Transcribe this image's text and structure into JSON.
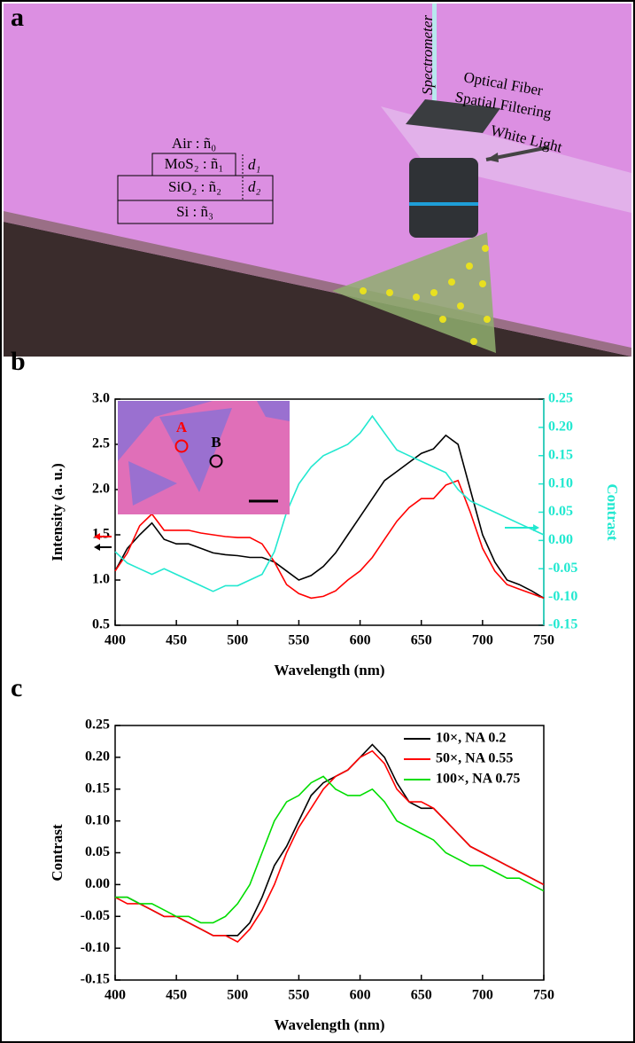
{
  "illustration": {
    "panel": "a",
    "air": "Air : ñ₀",
    "mos2": "MoS₂ : ñ₁",
    "d1": "d₁",
    "sio2": "SiO₂ : ñ₂",
    "d2": "d₂",
    "si": "Si : ñ₃",
    "spectrometer": "Spectrometer",
    "fiber": "Optical Fiber",
    "filtering": "Spatial Filtering",
    "white_light": "White Light"
  },
  "chart_data": [
    {
      "type": "line",
      "panel": "b",
      "xlabel": "Wavelength (nm)",
      "ylabel": "Intensity (a. u.)",
      "y2label": "Contrast",
      "x": [
        400,
        410,
        420,
        430,
        440,
        450,
        460,
        470,
        480,
        490,
        500,
        510,
        520,
        530,
        540,
        550,
        560,
        570,
        580,
        590,
        600,
        610,
        620,
        630,
        640,
        650,
        660,
        670,
        680,
        690,
        700,
        710,
        720,
        730,
        740,
        750
      ],
      "xlim": [
        400,
        750
      ],
      "xticks": [
        400,
        450,
        500,
        550,
        600,
        650,
        700,
        750
      ],
      "ylim": [
        0.5,
        3.0
      ],
      "yticks": [
        {
          "value": 0.5,
          "label": "0.5"
        },
        {
          "value": 1,
          "label": "1.0"
        },
        {
          "value": 1.5,
          "label": "1.5"
        },
        {
          "value": 2,
          "label": "2.0"
        },
        {
          "value": 2.5,
          "label": "2.5"
        },
        {
          "value": 3,
          "label": "3.0"
        }
      ],
      "y2lim": [
        -0.15,
        0.25
      ],
      "y2ticks": [
        -0.15,
        {
          "value": -0.1,
          "label": "-0.10"
        },
        -0.05,
        {
          "value": 0,
          "label": "0.00"
        },
        0.05,
        {
          "value": 0.1,
          "label": "0.10"
        },
        0.15,
        {
          "value": 0.2,
          "label": "0.20"
        },
        0.25
      ],
      "annotations": [
        "A",
        "B"
      ],
      "series": [
        {
          "color": "#000000",
          "values": [
            1.1,
            1.35,
            1.5,
            1.63,
            1.45,
            1.4,
            1.4,
            1.35,
            1.3,
            1.28,
            1.27,
            1.25,
            1.25,
            1.2,
            1.1,
            1.0,
            1.05,
            1.15,
            1.3,
            1.5,
            1.7,
            1.9,
            2.1,
            2.2,
            2.3,
            2.4,
            2.45,
            2.6,
            2.5,
            2.0,
            1.5,
            1.2,
            1.0,
            0.95,
            0.88,
            0.8
          ]
        },
        {
          "color": "#ff0000",
          "values": [
            1.1,
            1.3,
            1.6,
            1.73,
            1.55,
            1.55,
            1.55,
            1.52,
            1.5,
            1.48,
            1.47,
            1.47,
            1.4,
            1.2,
            0.95,
            0.85,
            0.8,
            0.82,
            0.88,
            1.0,
            1.1,
            1.25,
            1.45,
            1.65,
            1.8,
            1.9,
            1.9,
            2.05,
            2.1,
            1.75,
            1.35,
            1.1,
            0.95,
            0.9,
            0.85,
            0.8
          ]
        },
        {
          "color": "#22e8d0",
          "axis": "y2",
          "values": [
            -0.02,
            -0.04,
            -0.05,
            -0.06,
            -0.05,
            -0.06,
            -0.07,
            -0.08,
            -0.09,
            -0.08,
            -0.08,
            -0.07,
            -0.06,
            -0.02,
            0.05,
            0.1,
            0.13,
            0.15,
            0.16,
            0.17,
            0.19,
            0.22,
            0.19,
            0.16,
            0.15,
            0.14,
            0.13,
            0.12,
            0.09,
            0.07,
            0.06,
            0.05,
            0.04,
            0.03,
            0.02,
            0.01
          ]
        }
      ]
    },
    {
      "type": "line",
      "panel": "c",
      "xlabel": "Wavelength (nm)",
      "ylabel": "Contrast",
      "x": [
        400,
        410,
        420,
        430,
        440,
        450,
        460,
        470,
        480,
        490,
        500,
        510,
        520,
        530,
        540,
        550,
        560,
        570,
        580,
        590,
        600,
        610,
        620,
        630,
        640,
        650,
        660,
        670,
        680,
        690,
        700,
        710,
        720,
        730,
        740,
        750
      ],
      "xlim": [
        400,
        750
      ],
      "xticks": [
        400,
        450,
        500,
        550,
        600,
        650,
        700,
        750
      ],
      "ylim": [
        -0.15,
        0.25
      ],
      "yticks": [
        -0.15,
        {
          "value": -0.1,
          "label": "-0.10"
        },
        -0.05,
        {
          "value": 0,
          "label": "0.00"
        },
        0.05,
        {
          "value": 0.1,
          "label": "0.10"
        },
        0.15,
        {
          "value": 0.2,
          "label": "0.20"
        },
        0.25
      ],
      "legend": "upper right",
      "series": [
        {
          "name": "10×, NA 0.2",
          "color": "#000000",
          "values": [
            -0.02,
            -0.02,
            -0.03,
            -0.04,
            -0.05,
            -0.05,
            -0.06,
            -0.07,
            -0.08,
            -0.08,
            -0.08,
            -0.06,
            -0.02,
            0.03,
            0.06,
            0.1,
            0.14,
            0.16,
            0.17,
            0.18,
            0.2,
            0.22,
            0.2,
            0.16,
            0.13,
            0.12,
            0.12,
            0.1,
            0.08,
            0.06,
            0.05,
            0.04,
            0.03,
            0.02,
            0.01,
            0.0
          ]
        },
        {
          "name": "50×, NA 0.55",
          "color": "#ff0000",
          "values": [
            -0.02,
            -0.03,
            -0.03,
            -0.04,
            -0.05,
            -0.05,
            -0.06,
            -0.07,
            -0.08,
            -0.08,
            -0.09,
            -0.07,
            -0.04,
            0.0,
            0.05,
            0.09,
            0.12,
            0.15,
            0.17,
            0.18,
            0.2,
            0.21,
            0.19,
            0.15,
            0.13,
            0.13,
            0.12,
            0.1,
            0.08,
            0.06,
            0.05,
            0.04,
            0.03,
            0.02,
            0.01,
            0.0
          ]
        },
        {
          "name": "100×, NA 0.75",
          "color": "#00dd00",
          "values": [
            -0.02,
            -0.02,
            -0.03,
            -0.03,
            -0.04,
            -0.05,
            -0.05,
            -0.06,
            -0.06,
            -0.05,
            -0.03,
            0.0,
            0.05,
            0.1,
            0.13,
            0.14,
            0.16,
            0.17,
            0.15,
            0.14,
            0.14,
            0.15,
            0.13,
            0.1,
            0.09,
            0.08,
            0.07,
            0.05,
            0.04,
            0.03,
            0.03,
            0.02,
            0.01,
            0.01,
            0.0,
            -0.01
          ]
        }
      ]
    }
  ]
}
